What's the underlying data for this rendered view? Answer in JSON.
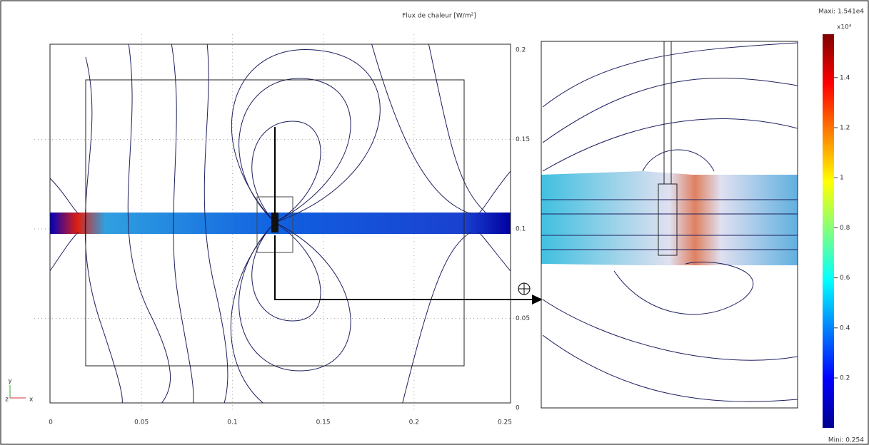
{
  "plot": {
    "title": "Flux de chaleur [W/m²]",
    "xticks": [
      "0",
      "0.05",
      "0.1",
      "0.15",
      "0.2",
      "0.25"
    ],
    "yticks": [
      "0",
      "0.05",
      "0.1",
      "0.15",
      "0.2"
    ],
    "axes_triad": [
      "y",
      "z",
      "x"
    ]
  },
  "colorbar": {
    "max_label": "Maxi: 1.541e4",
    "min_label": "Mini: 0.254",
    "multiplier": "x10⁴",
    "ticks": [
      "0.2",
      "0.4",
      "0.6",
      "0.8",
      "1",
      "1.2",
      "1.4"
    ]
  }
}
